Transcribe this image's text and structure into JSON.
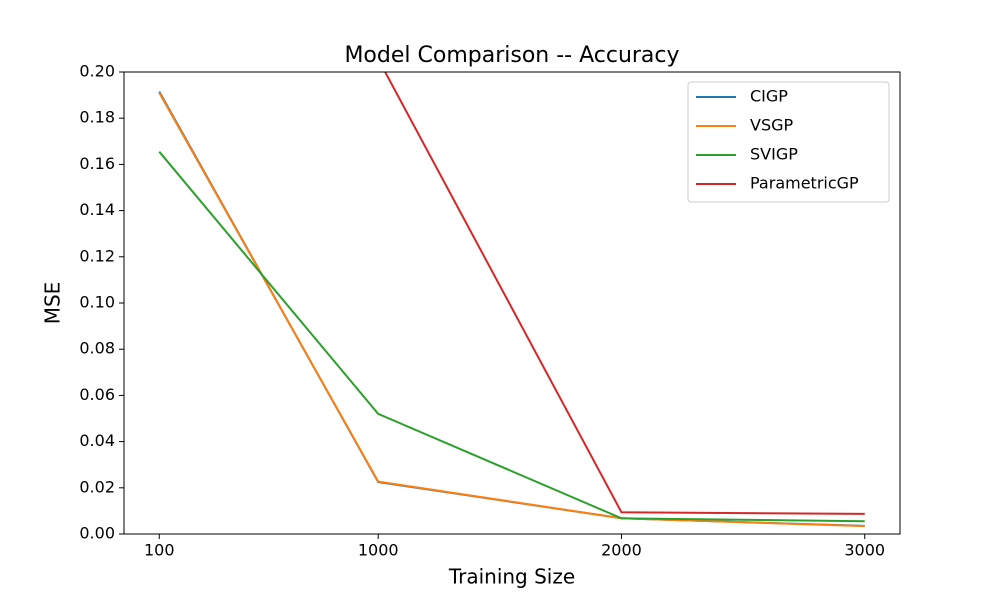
{
  "chart_data": {
    "type": "line",
    "title": "Model Comparison -- Accuracy",
    "x_label": "Training Size",
    "y_label": "MSE",
    "x": [
      100,
      1000,
      2000,
      3000
    ],
    "series": [
      {
        "name": "CIGP",
        "color": "#1f77b4",
        "values": [
          0.1915,
          0.0225,
          0.0068,
          0.0035
        ]
      },
      {
        "name": "VSGP",
        "color": "#ff7f0e",
        "values": [
          0.191,
          0.0227,
          0.0068,
          0.0034
        ]
      },
      {
        "name": "SVIGP",
        "color": "#2ca02c",
        "values": [
          0.1655,
          0.052,
          0.0068,
          0.0055
        ]
      },
      {
        "name": "ParametricGP",
        "color": "#d62728",
        "values": [
          null,
          0.2056,
          0.0094,
          0.0087
        ]
      }
    ],
    "xlim": [
      -45,
      3145
    ],
    "ylim": [
      0,
      0.2
    ],
    "xticks": [
      100,
      1000,
      2000,
      3000
    ],
    "yticks": [
      {
        "value": 0,
        "label": "0.00"
      },
      {
        "value": 0.02,
        "label": "0.02"
      },
      {
        "value": 0.04,
        "label": "0.04"
      },
      {
        "value": 0.06,
        "label": "0.06"
      },
      {
        "value": 0.08,
        "label": "0.08"
      },
      {
        "value": 0.1,
        "label": "0.10"
      },
      {
        "value": 0.12,
        "label": "0.12"
      },
      {
        "value": 0.14,
        "label": "0.14"
      },
      {
        "value": 0.16,
        "label": "0.16"
      },
      {
        "value": 0.18,
        "label": "0.18"
      },
      {
        "value": 0.2,
        "label": "0.20"
      }
    ],
    "legend": "upper right"
  }
}
